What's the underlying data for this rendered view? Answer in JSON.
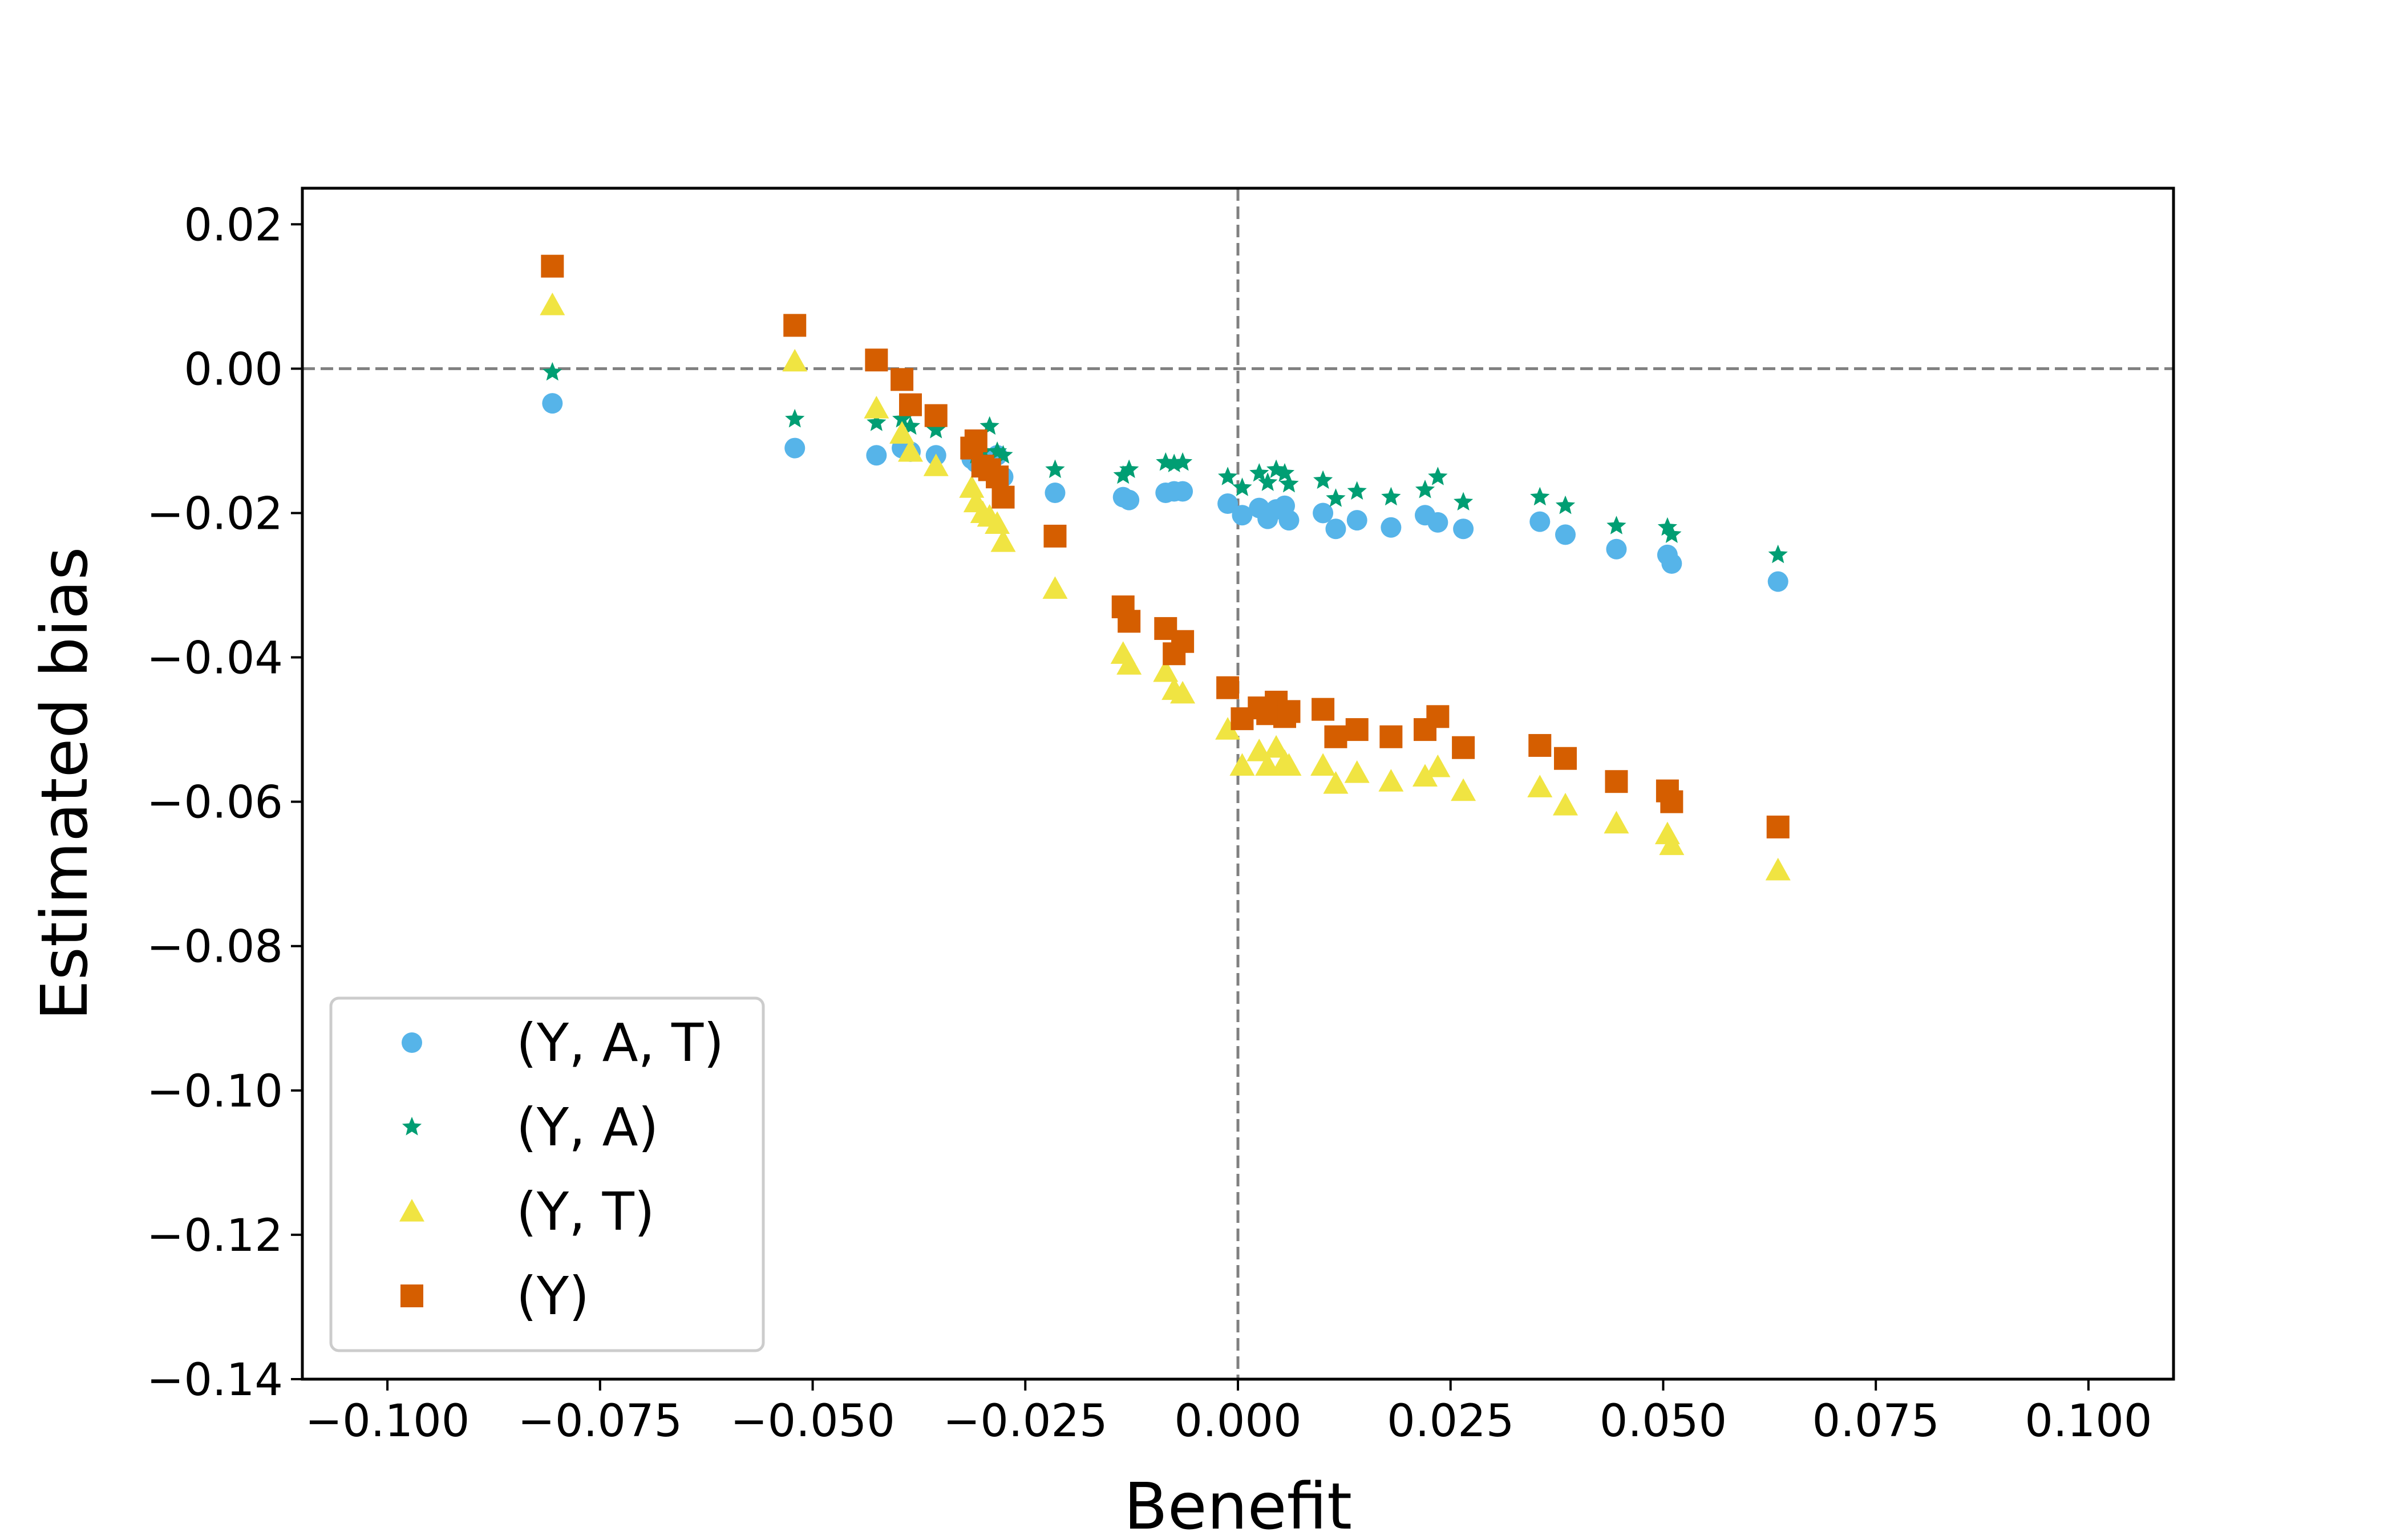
{
  "chart_data": {
    "type": "scatter",
    "title": "",
    "xlabel": "Benefit",
    "ylabel": "Estimated bias",
    "xlim": [
      -0.11,
      0.11
    ],
    "ylim": [
      -0.14,
      0.025
    ],
    "xticks": [
      -0.1,
      -0.075,
      -0.05,
      -0.025,
      0.0,
      0.025,
      0.05,
      0.075,
      0.1
    ],
    "xtick_labels": [
      "−0.100",
      "−0.075",
      "−0.050",
      "−0.025",
      "0.000",
      "0.025",
      "0.050",
      "0.075",
      "0.100"
    ],
    "yticks": [
      0.02,
      0.0,
      -0.02,
      -0.04,
      -0.06,
      -0.08,
      -0.1,
      -0.12,
      -0.14
    ],
    "ytick_labels": [
      "0.02",
      "0.00",
      "−0.02",
      "−0.04",
      "−0.06",
      "−0.08",
      "−0.10",
      "−0.12",
      "−0.14"
    ],
    "reference_lines": {
      "x": 0.0,
      "y": 0.0,
      "style": "dashed",
      "color": "#808080"
    },
    "grid": false,
    "legend_position": "lower-left",
    "x": [
      -0.0806,
      -0.0521,
      -0.0425,
      -0.0395,
      -0.0385,
      -0.0355,
      -0.0313,
      -0.0308,
      -0.03,
      -0.0292,
      -0.0283,
      -0.0276,
      -0.0215,
      -0.0135,
      -0.0128,
      -0.0085,
      -0.0075,
      -0.0065,
      -0.0012,
      0.0005,
      0.0025,
      0.0035,
      0.0045,
      0.0055,
      0.006,
      0.01,
      0.0115,
      0.014,
      0.018,
      0.022,
      0.0235,
      0.0265,
      0.0355,
      0.0385,
      0.0445,
      0.0505,
      0.051,
      0.0635
    ],
    "series": [
      {
        "name": "(Y, A, T)",
        "marker": "circle",
        "color": "#56B4E9",
        "values": [
          -0.0048,
          -0.011,
          -0.012,
          -0.011,
          -0.0115,
          -0.012,
          -0.0125,
          -0.013,
          -0.013,
          -0.0128,
          -0.012,
          -0.015,
          -0.0172,
          -0.0178,
          -0.0182,
          -0.0172,
          -0.017,
          -0.017,
          -0.0187,
          -0.0203,
          -0.0193,
          -0.0208,
          -0.0195,
          -0.019,
          -0.021,
          -0.02,
          -0.0222,
          -0.021,
          -0.022,
          -0.0203,
          -0.0213,
          -0.0222,
          -0.0212,
          -0.023,
          -0.025,
          -0.0258,
          -0.027,
          -0.0295
        ]
      },
      {
        "name": "(Y, A)",
        "marker": "star",
        "color": "#009E73",
        "values": [
          -0.0005,
          -0.007,
          -0.0075,
          -0.007,
          -0.008,
          -0.0085,
          -0.0105,
          -0.012,
          -0.0115,
          -0.008,
          -0.0115,
          -0.012,
          -0.014,
          -0.0148,
          -0.014,
          -0.013,
          -0.0132,
          -0.013,
          -0.015,
          -0.0165,
          -0.0145,
          -0.0158,
          -0.014,
          -0.0145,
          -0.016,
          -0.0155,
          -0.018,
          -0.017,
          -0.0178,
          -0.0168,
          -0.015,
          -0.0185,
          -0.0178,
          -0.019,
          -0.0218,
          -0.022,
          -0.023,
          -0.0258
        ]
      },
      {
        "name": "(Y, T)",
        "marker": "triangle",
        "color": "#F0E442",
        "values": [
          0.0088,
          0.001,
          -0.0055,
          -0.009,
          -0.0115,
          -0.0135,
          -0.0165,
          -0.0185,
          -0.02,
          -0.0205,
          -0.0215,
          -0.024,
          -0.0305,
          -0.0395,
          -0.041,
          -0.042,
          -0.0445,
          -0.045,
          -0.05,
          -0.055,
          -0.053,
          -0.055,
          -0.0525,
          -0.0545,
          -0.055,
          -0.055,
          -0.0575,
          -0.056,
          -0.0572,
          -0.0565,
          -0.0552,
          -0.0585,
          -0.058,
          -0.0605,
          -0.063,
          -0.0645,
          -0.066,
          -0.0695
        ]
      },
      {
        "name": "(Y)",
        "marker": "square",
        "color": "#D55E00",
        "values": [
          0.0142,
          0.006,
          0.0012,
          -0.0015,
          -0.005,
          -0.0065,
          -0.011,
          -0.01,
          -0.0135,
          -0.014,
          -0.015,
          -0.0178,
          -0.0232,
          -0.033,
          -0.035,
          -0.036,
          -0.0395,
          -0.0378,
          -0.0442,
          -0.0485,
          -0.047,
          -0.0478,
          -0.0462,
          -0.0482,
          -0.0475,
          -0.0472,
          -0.051,
          -0.05,
          -0.051,
          -0.05,
          -0.0482,
          -0.0525,
          -0.0522,
          -0.054,
          -0.0572,
          -0.0585,
          -0.06,
          -0.0635
        ]
      }
    ]
  }
}
